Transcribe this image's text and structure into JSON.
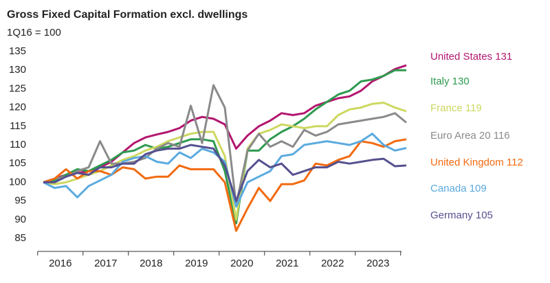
{
  "chart_data": {
    "type": "line",
    "title": "Gross Fixed Capital Formation excl. dwellings",
    "subtitle": "1Q16 = 100",
    "categories": [
      null,
      "2016",
      null,
      null,
      null,
      "2017",
      null,
      null,
      null,
      "2018",
      null,
      null,
      null,
      "2019",
      null,
      null,
      null,
      "2020",
      null,
      null,
      null,
      "2021",
      null,
      null,
      null,
      "2022",
      null,
      null,
      null,
      "2023",
      null,
      null,
      null
    ],
    "ylim": [
      85,
      135
    ],
    "yticks": [
      85,
      90,
      95,
      100,
      105,
      110,
      115,
      120,
      125,
      130,
      135
    ],
    "series": [
      {
        "name": "United States 131",
        "color": "#b3166f",
        "values": [
          100,
          101,
          102,
          102.5,
          103,
          104,
          105.5,
          108,
          110.5,
          112,
          112.8,
          113.5,
          114.5,
          116.5,
          117.5,
          117,
          115.5,
          109,
          112.5,
          115,
          116.5,
          118.5,
          118,
          118.5,
          120.5,
          121.5,
          122.5,
          123,
          124.5,
          127,
          128.5,
          130.3,
          131.3
        ]
      },
      {
        "name": "Italy 130",
        "color": "#2e9a4f",
        "values": [
          100,
          100.5,
          102,
          103.5,
          103,
          104.5,
          106,
          108,
          108.5,
          110,
          109,
          109.5,
          110.5,
          111.5,
          111.5,
          111,
          103,
          89,
          108.5,
          108.5,
          111.5,
          113.5,
          115,
          117,
          119.5,
          121.5,
          123.5,
          124.5,
          127,
          127.5,
          128.5,
          130,
          130
        ]
      },
      {
        "name": "France 119",
        "color": "#cdd860",
        "values": [
          100,
          99.5,
          100,
          101,
          102,
          103,
          104.5,
          106,
          107,
          108.5,
          109.5,
          111,
          112,
          113,
          113.5,
          113.5,
          107,
          90,
          109,
          113,
          114,
          115.5,
          115,
          114.5,
          115,
          115,
          118,
          119.5,
          120,
          121,
          121.3,
          120,
          119
        ]
      },
      {
        "name": "Euro Area 20 116",
        "color": "#8a8a8a",
        "values": [
          100,
          101,
          101.5,
          103,
          104,
          111,
          105,
          105,
          105.5,
          106.5,
          109,
          110.5,
          109.5,
          120.5,
          110.5,
          126,
          120,
          94,
          108.5,
          113,
          109.5,
          111,
          109.5,
          114,
          112.5,
          113.5,
          115.5,
          116,
          116.5,
          117,
          117.5,
          118.5,
          116
        ]
      },
      {
        "name": "United Kingdom 112",
        "color": "#f26a10",
        "values": [
          100,
          101,
          103.5,
          101,
          103,
          103,
          102,
          104,
          103.5,
          101,
          101.5,
          101.5,
          104.5,
          103.5,
          103.5,
          103.5,
          100,
          87,
          93,
          98.5,
          95,
          99.5,
          99.5,
          100.5,
          105,
          104.5,
          106,
          107,
          111,
          110.5,
          109.5,
          111,
          111.5
        ]
      },
      {
        "name": "Canada 109",
        "color": "#5aaadf",
        "values": [
          100,
          98.5,
          99,
          96,
          99,
          100.5,
          102,
          105.5,
          106.5,
          107,
          105.5,
          105,
          108,
          106.5,
          109,
          108,
          105.5,
          93.5,
          100,
          101.5,
          103,
          107,
          107.5,
          110,
          110.5,
          111,
          110.5,
          110,
          111,
          113,
          110,
          108.5,
          109.2
        ]
      },
      {
        "name": "Germany 105",
        "color": "#55508f",
        "values": [
          100,
          100,
          101.5,
          102.5,
          102,
          104,
          104,
          105,
          105,
          107.5,
          108.5,
          109,
          109,
          110,
          109.5,
          109,
          104.5,
          95,
          103,
          106,
          104,
          105,
          102,
          103,
          104,
          104,
          105.5,
          105,
          105.5,
          106,
          106.3,
          104.3,
          104.5
        ]
      }
    ]
  }
}
